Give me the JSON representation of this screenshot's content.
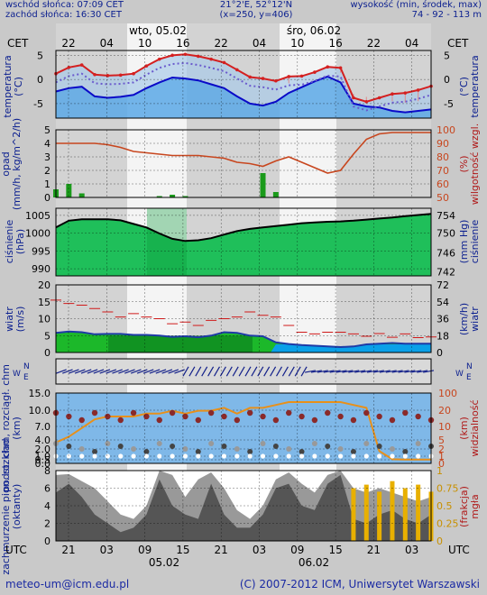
{
  "header": {
    "sunrise": "wschód słońca: 07:09 CET",
    "sunset": "zachód słońca: 16:30 CET",
    "coords": "21°2'E, 52°12'N",
    "grid": "(x=250, y=406)",
    "alt_label": "wysokość (min, środek, max)",
    "alt_values": "74 - 92 - 113 m"
  },
  "timeline": {
    "tz_left": "CET",
    "tz_right": "CET",
    "day1": "wto, 05.02",
    "day2": "śro, 06.02",
    "top_hours": [
      "22",
      "04",
      "10",
      "16",
      "22",
      "04",
      "10",
      "16",
      "22",
      "04"
    ],
    "utc_left": "UTC",
    "utc_right": "UTC",
    "bottom_hours": [
      "21",
      "03",
      "09",
      "15",
      "21",
      "03",
      "09",
      "15",
      "21",
      "03"
    ],
    "bottom_day1": "05.02",
    "bottom_day2": "06.02"
  },
  "footer": {
    "email": "meteo-um@icm.edu.pl",
    "copyright": "(C) 2007-2012 ICM, Uniwersytet Warszawski"
  },
  "colors": {
    "night": "#d3d3d3",
    "day": "#f4f4f4",
    "temp_red": "#d42020",
    "temp_blue": "#0a0ac8",
    "humidity": "#c8461e",
    "precip": "#1a9a1a",
    "pressure": "#0b5a0b",
    "wind_line": "#1e3aa6",
    "gust": "#d01a1a",
    "visibility": "#e8901a",
    "cloud_dark": "#555555",
    "cloud_light": "#999999",
    "fog": "#e8b000"
  },
  "chart_data": [
    {
      "type": "line",
      "panel": "temperature",
      "ylabel": "temperatura (°C)",
      "ylim": [
        -8,
        6
      ],
      "yticks": [
        5,
        0,
        -5
      ],
      "series": [
        {
          "values": [
            1.2,
            2.5,
            3.0,
            1.0,
            0.8,
            0.9,
            1.2,
            2.8,
            4.2,
            5.0,
            5.2,
            4.8,
            4.2,
            3.5,
            2.0,
            0.5,
            0.2,
            -0.3,
            0.6,
            0.7,
            1.5,
            2.6,
            2.4,
            -3.8,
            -4.6,
            -3.8,
            -3.0,
            -2.8,
            -2.2,
            -1.4
          ]
        },
        {
          "values": [
            -2.5,
            -1.8,
            -1.5,
            -3.5,
            -3.8,
            -3.6,
            -3.2,
            -1.8,
            -0.6,
            0.4,
            0.2,
            -0.2,
            -1.0,
            -1.8,
            -3.5,
            -5.0,
            -5.4,
            -4.6,
            -2.8,
            -1.6,
            -0.4,
            0.6,
            -0.6,
            -5.0,
            -5.6,
            -5.8,
            -6.5,
            -6.8,
            -6.5,
            -6.2
          ]
        }
      ]
    },
    {
      "type": "bar",
      "panel": "precipitation_humidity",
      "ylabel": "opad (mm/h, kg/m^2/h)",
      "y2label": "wilgotność wzgl. (%)",
      "ylim": [
        0,
        5
      ],
      "y2lim": [
        50,
        100
      ],
      "precip": [
        0.6,
        1.0,
        0.3,
        0,
        0,
        0,
        0,
        0,
        0.1,
        0.2,
        0.1,
        0,
        0,
        0,
        0,
        0,
        1.8,
        0.4,
        0,
        0,
        0,
        0,
        0,
        0,
        0,
        0,
        0,
        0,
        0,
        0
      ],
      "humidity": [
        90,
        90,
        90,
        90,
        89,
        87,
        84,
        83,
        82,
        81,
        81,
        81,
        80,
        79,
        76,
        75,
        73,
        77,
        80,
        76,
        72,
        68,
        70,
        82,
        93,
        97,
        98,
        98,
        98,
        98
      ]
    },
    {
      "type": "area",
      "panel": "pressure",
      "ylabel": "ciśnienie (hPa)",
      "y2label": "(mm Hg)",
      "ylim": [
        988,
        1007
      ],
      "yticks": [
        1005,
        1000,
        995,
        990
      ],
      "y2ticks": [
        754,
        750,
        746,
        742
      ],
      "values": [
        1001.6,
        1003.5,
        1003.9,
        1003.9,
        1003.9,
        1003.6,
        1002.6,
        1001.6,
        999.9,
        998.4,
        997.8,
        998.0,
        998.6,
        999.6,
        1000.6,
        1001.2,
        1001.6,
        1002.0,
        1002.4,
        1002.8,
        1003.0,
        1003.2,
        1003.3,
        1003.5,
        1003.8,
        1004.1,
        1004.4,
        1004.8,
        1005.1,
        1005.4
      ]
    },
    {
      "type": "area",
      "panel": "wind",
      "ylabel": "wiatr (m/s)",
      "y2label": "(km/h) wiatr",
      "ylim": [
        0,
        20
      ],
      "yticks": [
        20,
        15,
        10,
        5,
        0
      ],
      "y2ticks": [
        72,
        54,
        36,
        18,
        0
      ],
      "speed": [
        5.8,
        6.2,
        6.0,
        5.4,
        5.5,
        5.5,
        5.2,
        5.2,
        5.0,
        4.6,
        4.8,
        4.5,
        5.0,
        6.0,
        5.8,
        5.0,
        4.8,
        3.0,
        2.5,
        2.2,
        2.0,
        1.8,
        1.6,
        1.8,
        2.4,
        2.6,
        2.8,
        2.6,
        2.6,
        2.6
      ],
      "gusts": [
        15.5,
        14.5,
        14.0,
        13.0,
        12.0,
        10.5,
        11.5,
        10.5,
        10.0,
        8.5,
        9.0,
        8.0,
        9.5,
        10.0,
        10.5,
        12.0,
        11.0,
        10.5,
        8.0,
        6.0,
        5.5,
        6.0,
        6.0,
        5.5,
        4.8,
        5.6,
        4.5,
        5.5,
        4.4,
        4.6
      ]
    },
    {
      "type": "line",
      "panel": "cloud_base_visibility",
      "ylabel": "podst. chm, rozciągł. chm (km)",
      "y2label": "widzialność (km)",
      "ylim": [
        0,
        15
      ],
      "yticks": [
        15.0,
        10.0,
        7.0,
        4.0,
        2.0,
        1.0,
        0.5,
        0.0
      ],
      "y2ticks": [
        100,
        20,
        10,
        5,
        2,
        1,
        0
      ],
      "visibility": [
        6,
        8,
        11,
        14,
        15,
        15,
        15,
        16,
        16,
        17,
        16,
        17,
        17,
        18,
        16,
        18,
        18,
        19,
        20,
        20,
        20,
        20,
        20,
        19,
        18,
        3,
        0.2,
        0.1,
        0.1,
        0.1
      ]
    },
    {
      "type": "area",
      "panel": "cloud_cover_fog",
      "ylabel": "zachmurzenie pion. rozkład (oktanty)",
      "y2label": "mgła (frakcja)",
      "ylim": [
        0,
        8
      ],
      "yticks": [
        8,
        6,
        4,
        2,
        0
      ],
      "y2ticks": [
        1,
        0.75,
        0.5,
        0.25,
        0
      ],
      "high": [
        7.5,
        7.6,
        6.8,
        6.0,
        4.5,
        3.0,
        2.5,
        4.0,
        8.0,
        7.5,
        5.0,
        7.0,
        7.8,
        6.0,
        3.5,
        2.5,
        4.0,
        7.0,
        7.8,
        6.5,
        5.5,
        7.5,
        8.0,
        6.0,
        5.5,
        6.0,
        5.5,
        5.0,
        4.5,
        5.0
      ],
      "low": [
        5.5,
        6.5,
        5.0,
        3.0,
        2.0,
        1.0,
        1.5,
        3.0,
        7.0,
        4.0,
        3.0,
        2.5,
        6.5,
        3.0,
        1.5,
        1.5,
        3.0,
        6.0,
        6.5,
        4.0,
        3.5,
        6.5,
        7.5,
        2.5,
        2.0,
        3.0,
        3.5,
        2.5,
        2.0,
        3.0
      ],
      "fog": [
        0,
        0,
        0,
        0,
        0,
        0,
        0,
        0,
        0,
        0,
        0,
        0,
        0,
        0,
        0,
        0,
        0,
        0,
        0,
        0,
        0,
        0,
        0,
        0.75,
        0.8,
        0.7,
        0.85,
        0.75,
        0.8,
        0.7
      ]
    }
  ]
}
